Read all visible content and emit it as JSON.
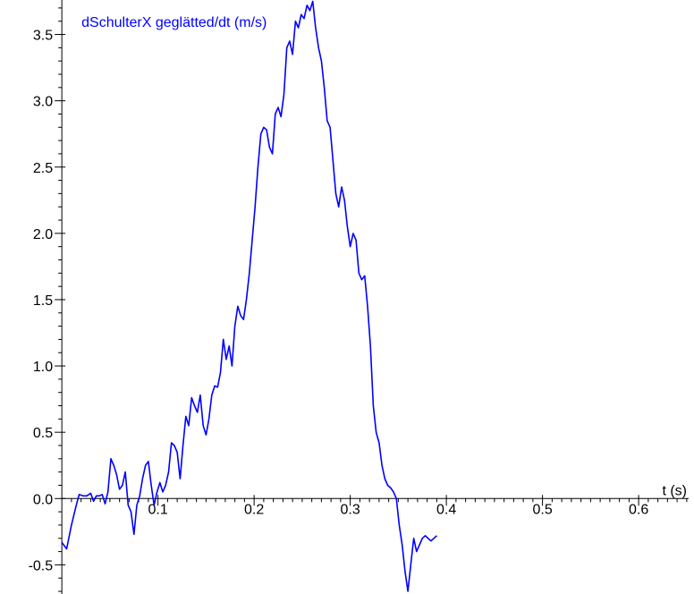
{
  "chart_data": {
    "type": "line",
    "ylabel": "dSchulterX geglätted/dt (m/s)",
    "xlabel": "t (s)",
    "xlim": [
      -0.002,
      0.652
    ],
    "ylim": [
      -0.72,
      3.76
    ],
    "x_ticks": [
      0.1,
      0.2,
      0.3,
      0.4,
      0.5,
      0.6
    ],
    "x_tick_labels": [
      "0.1",
      "0.2",
      "0.3",
      "0.4",
      "0.5",
      "0.6"
    ],
    "y_ticks": [
      -0.5,
      0.0,
      0.5,
      1.0,
      1.5,
      2.0,
      2.5,
      3.0,
      3.5
    ],
    "y_tick_labels": [
      "-0.5",
      "0.0",
      "0.5",
      "1.0",
      "1.5",
      "2.0",
      "2.5",
      "3.0",
      "3.5"
    ],
    "grid": false,
    "series": [
      {
        "color": "#0000ff",
        "x": [
          0.0,
          0.005,
          0.01,
          0.015,
          0.018,
          0.022,
          0.026,
          0.03,
          0.033,
          0.036,
          0.039,
          0.042,
          0.045,
          0.048,
          0.051,
          0.054,
          0.057,
          0.06,
          0.063,
          0.066,
          0.069,
          0.072,
          0.075,
          0.078,
          0.081,
          0.084,
          0.087,
          0.09,
          0.093,
          0.096,
          0.099,
          0.102,
          0.105,
          0.108,
          0.111,
          0.114,
          0.117,
          0.12,
          0.123,
          0.126,
          0.129,
          0.132,
          0.135,
          0.138,
          0.141,
          0.144,
          0.147,
          0.15,
          0.153,
          0.156,
          0.159,
          0.162,
          0.165,
          0.168,
          0.171,
          0.174,
          0.177,
          0.18,
          0.183,
          0.186,
          0.189,
          0.192,
          0.195,
          0.198,
          0.201,
          0.204,
          0.207,
          0.21,
          0.213,
          0.216,
          0.219,
          0.222,
          0.225,
          0.228,
          0.231,
          0.234,
          0.237,
          0.24,
          0.243,
          0.246,
          0.249,
          0.252,
          0.255,
          0.258,
          0.261,
          0.264,
          0.267,
          0.27,
          0.273,
          0.276,
          0.279,
          0.282,
          0.285,
          0.288,
          0.291,
          0.294,
          0.297,
          0.3,
          0.303,
          0.306,
          0.309,
          0.312,
          0.315,
          0.318,
          0.321,
          0.324,
          0.327,
          0.33,
          0.333,
          0.336,
          0.339,
          0.342,
          0.345,
          0.348,
          0.351,
          0.354,
          0.357,
          0.36,
          0.363,
          0.366,
          0.369,
          0.372,
          0.375,
          0.378,
          0.381,
          0.384,
          0.387,
          0.39
        ],
        "y": [
          -0.33,
          -0.38,
          -0.2,
          -0.05,
          0.03,
          0.02,
          0.02,
          0.04,
          -0.02,
          0.02,
          0.02,
          0.03,
          -0.04,
          0.05,
          0.3,
          0.25,
          0.18,
          0.07,
          0.1,
          0.2,
          -0.05,
          -0.1,
          -0.27,
          -0.05,
          0.02,
          0.15,
          0.25,
          0.28,
          0.1,
          -0.05,
          0.05,
          0.12,
          0.05,
          0.1,
          0.2,
          0.42,
          0.4,
          0.35,
          0.15,
          0.4,
          0.62,
          0.55,
          0.76,
          0.7,
          0.65,
          0.78,
          0.55,
          0.48,
          0.6,
          0.78,
          0.85,
          0.84,
          0.95,
          1.2,
          1.05,
          1.15,
          1.0,
          1.3,
          1.45,
          1.38,
          1.35,
          1.5,
          1.7,
          1.95,
          2.2,
          2.5,
          2.75,
          2.8,
          2.78,
          2.65,
          2.6,
          2.9,
          2.95,
          2.88,
          3.05,
          3.4,
          3.45,
          3.35,
          3.6,
          3.55,
          3.65,
          3.62,
          3.72,
          3.68,
          3.75,
          3.55,
          3.4,
          3.3,
          3.1,
          2.85,
          2.8,
          2.55,
          2.3,
          2.2,
          2.35,
          2.25,
          2.05,
          1.9,
          2.0,
          1.95,
          1.7,
          1.65,
          1.68,
          1.45,
          1.15,
          0.7,
          0.5,
          0.42,
          0.25,
          0.15,
          0.1,
          0.08,
          0.05,
          0.0,
          -0.2,
          -0.35,
          -0.55,
          -0.7,
          -0.5,
          -0.3,
          -0.4,
          -0.35,
          -0.3,
          -0.28,
          -0.3,
          -0.32,
          -0.3,
          -0.28
        ]
      }
    ]
  }
}
